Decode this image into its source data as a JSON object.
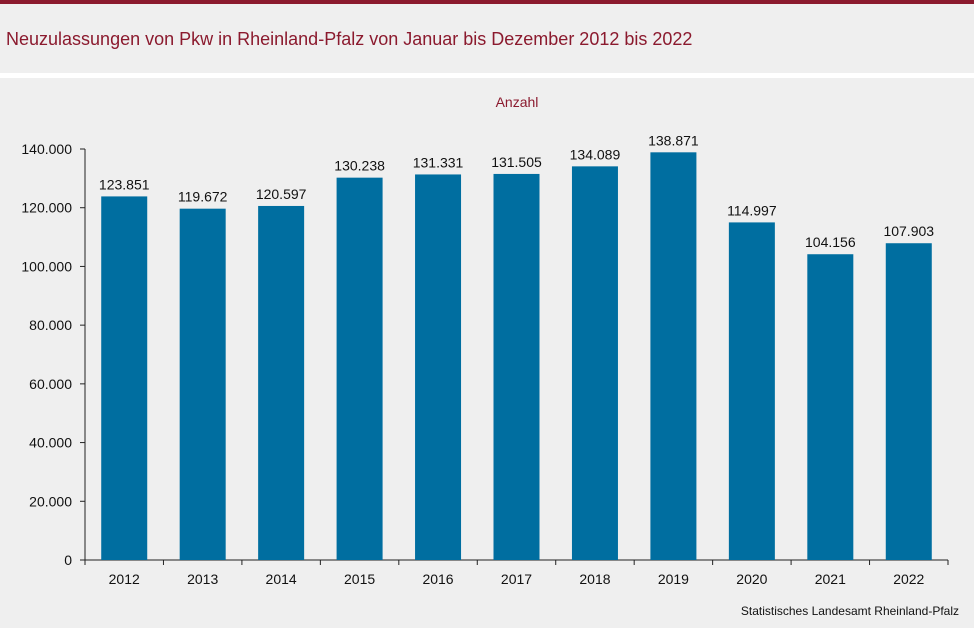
{
  "title": "Neuzulassungen von Pkw in Rheinland-Pfalz von Januar bis Dezember 2012 bis 2022",
  "source": "Statistisches Landesamt  Rheinland-Pfalz",
  "chart_data": {
    "type": "bar",
    "title": "Neuzulassungen von Pkw in Rheinland-Pfalz von Januar bis Dezember 2012 bis 2022",
    "ylabel": "Anzahl",
    "xlabel": "",
    "categories": [
      "2012",
      "2013",
      "2014",
      "2015",
      "2016",
      "2017",
      "2018",
      "2019",
      "2020",
      "2021",
      "2022"
    ],
    "values": [
      123851,
      119672,
      120597,
      130238,
      131331,
      131505,
      134089,
      138871,
      114997,
      104156,
      107903
    ],
    "value_labels": [
      "123.851",
      "119.672",
      "120.597",
      "130.238",
      "131.331",
      "131.505",
      "134.089",
      "138.871",
      "114.997",
      "104.156",
      "107.903"
    ],
    "ylim": [
      0,
      140000
    ],
    "yticks": [
      0,
      20000,
      40000,
      60000,
      80000,
      100000,
      120000,
      140000
    ],
    "ytick_labels": [
      "0",
      "20.000",
      "40.000",
      "60.000",
      "80.000",
      "100.000",
      "120.000",
      "140.000"
    ],
    "grid": false,
    "legend": "none",
    "bar_color": "#006ea0"
  }
}
